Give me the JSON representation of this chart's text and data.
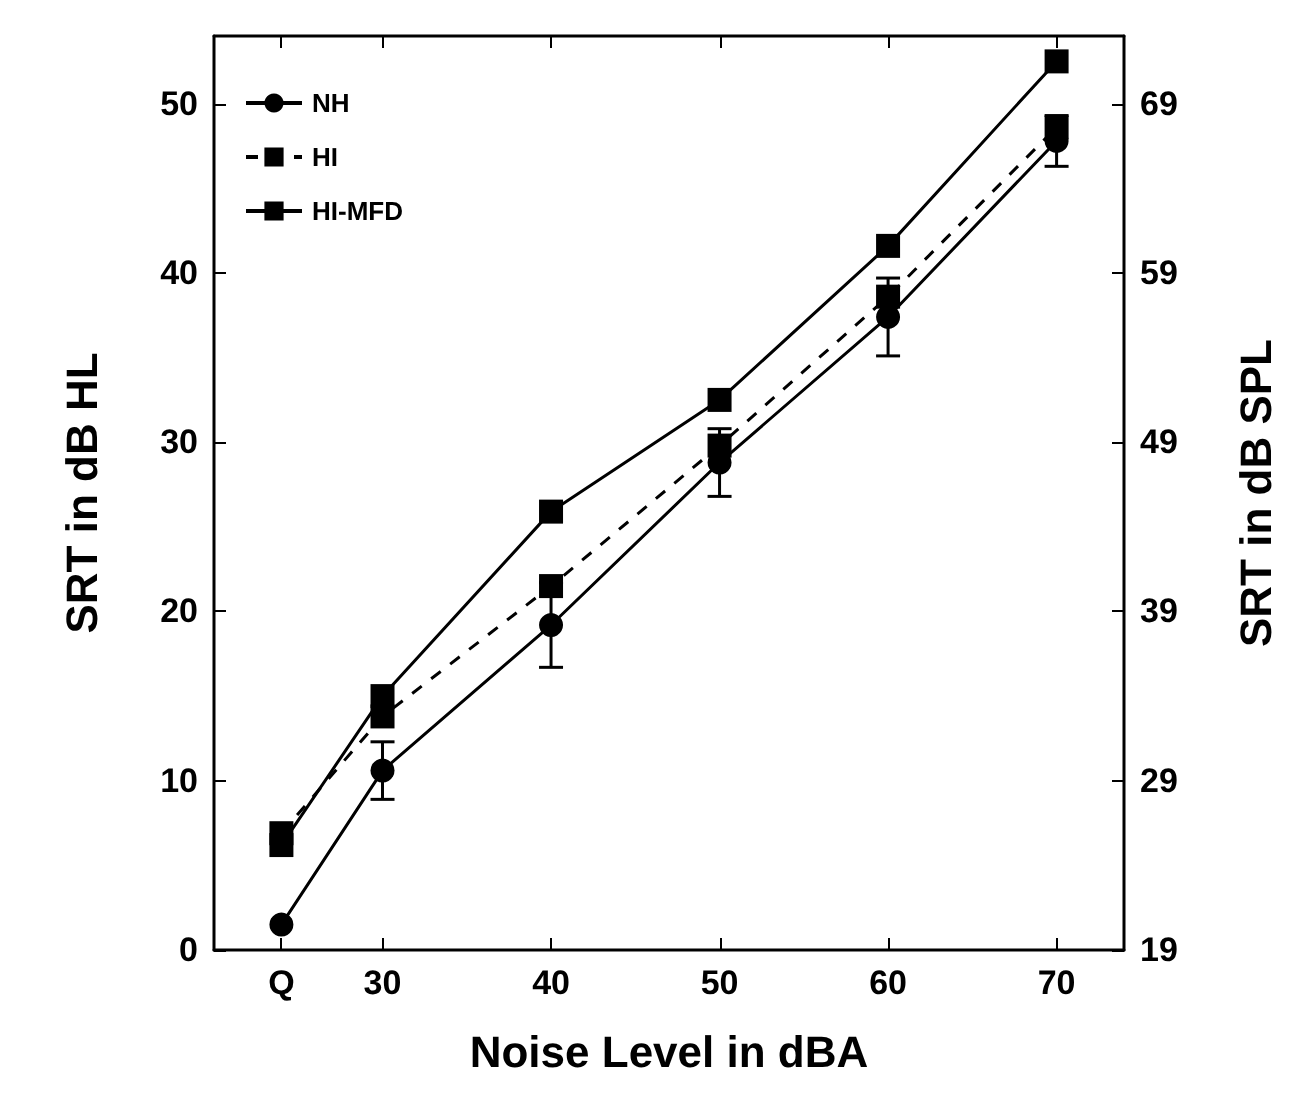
{
  "chart_data": {
    "type": "line",
    "xlabel": "Noise Level in dBA",
    "ylabel": "SRT in dB HL",
    "y2label": "SRT in dB SPL",
    "x": [
      24,
      30,
      40,
      50,
      60,
      70
    ],
    "xlim": [
      20,
      74
    ],
    "xticks": [
      {
        "value": 24,
        "label": "Q"
      },
      30,
      40,
      50,
      60,
      70
    ],
    "ylim": [
      0,
      54
    ],
    "yticks": [
      0,
      10,
      20,
      30,
      40,
      50
    ],
    "y2lim": [
      19,
      73
    ],
    "y2ticks": [
      19,
      29,
      39,
      49,
      59,
      69
    ],
    "grid": false,
    "legend": "top left",
    "series": [
      {
        "name": "NH",
        "color": "#000000",
        "marker": "circle",
        "line_style": "solid",
        "values": [
          1.5,
          10.6,
          19.2,
          28.8,
          37.4,
          47.8
        ],
        "errors": [
          null,
          1.7,
          2.5,
          2.0,
          2.3,
          1.5
        ]
      },
      {
        "name": "HI",
        "color": "#000000",
        "marker": "square",
        "line_style": "dashed",
        "values": [
          6.9,
          13.8,
          21.5,
          29.8,
          38.6,
          48.6
        ]
      },
      {
        "name": "HI-MFD",
        "color": "#000000",
        "marker": "square",
        "line_style": "solid",
        "values": [
          6.2,
          15.0,
          25.9,
          32.5,
          41.6,
          52.5
        ]
      }
    ]
  }
}
